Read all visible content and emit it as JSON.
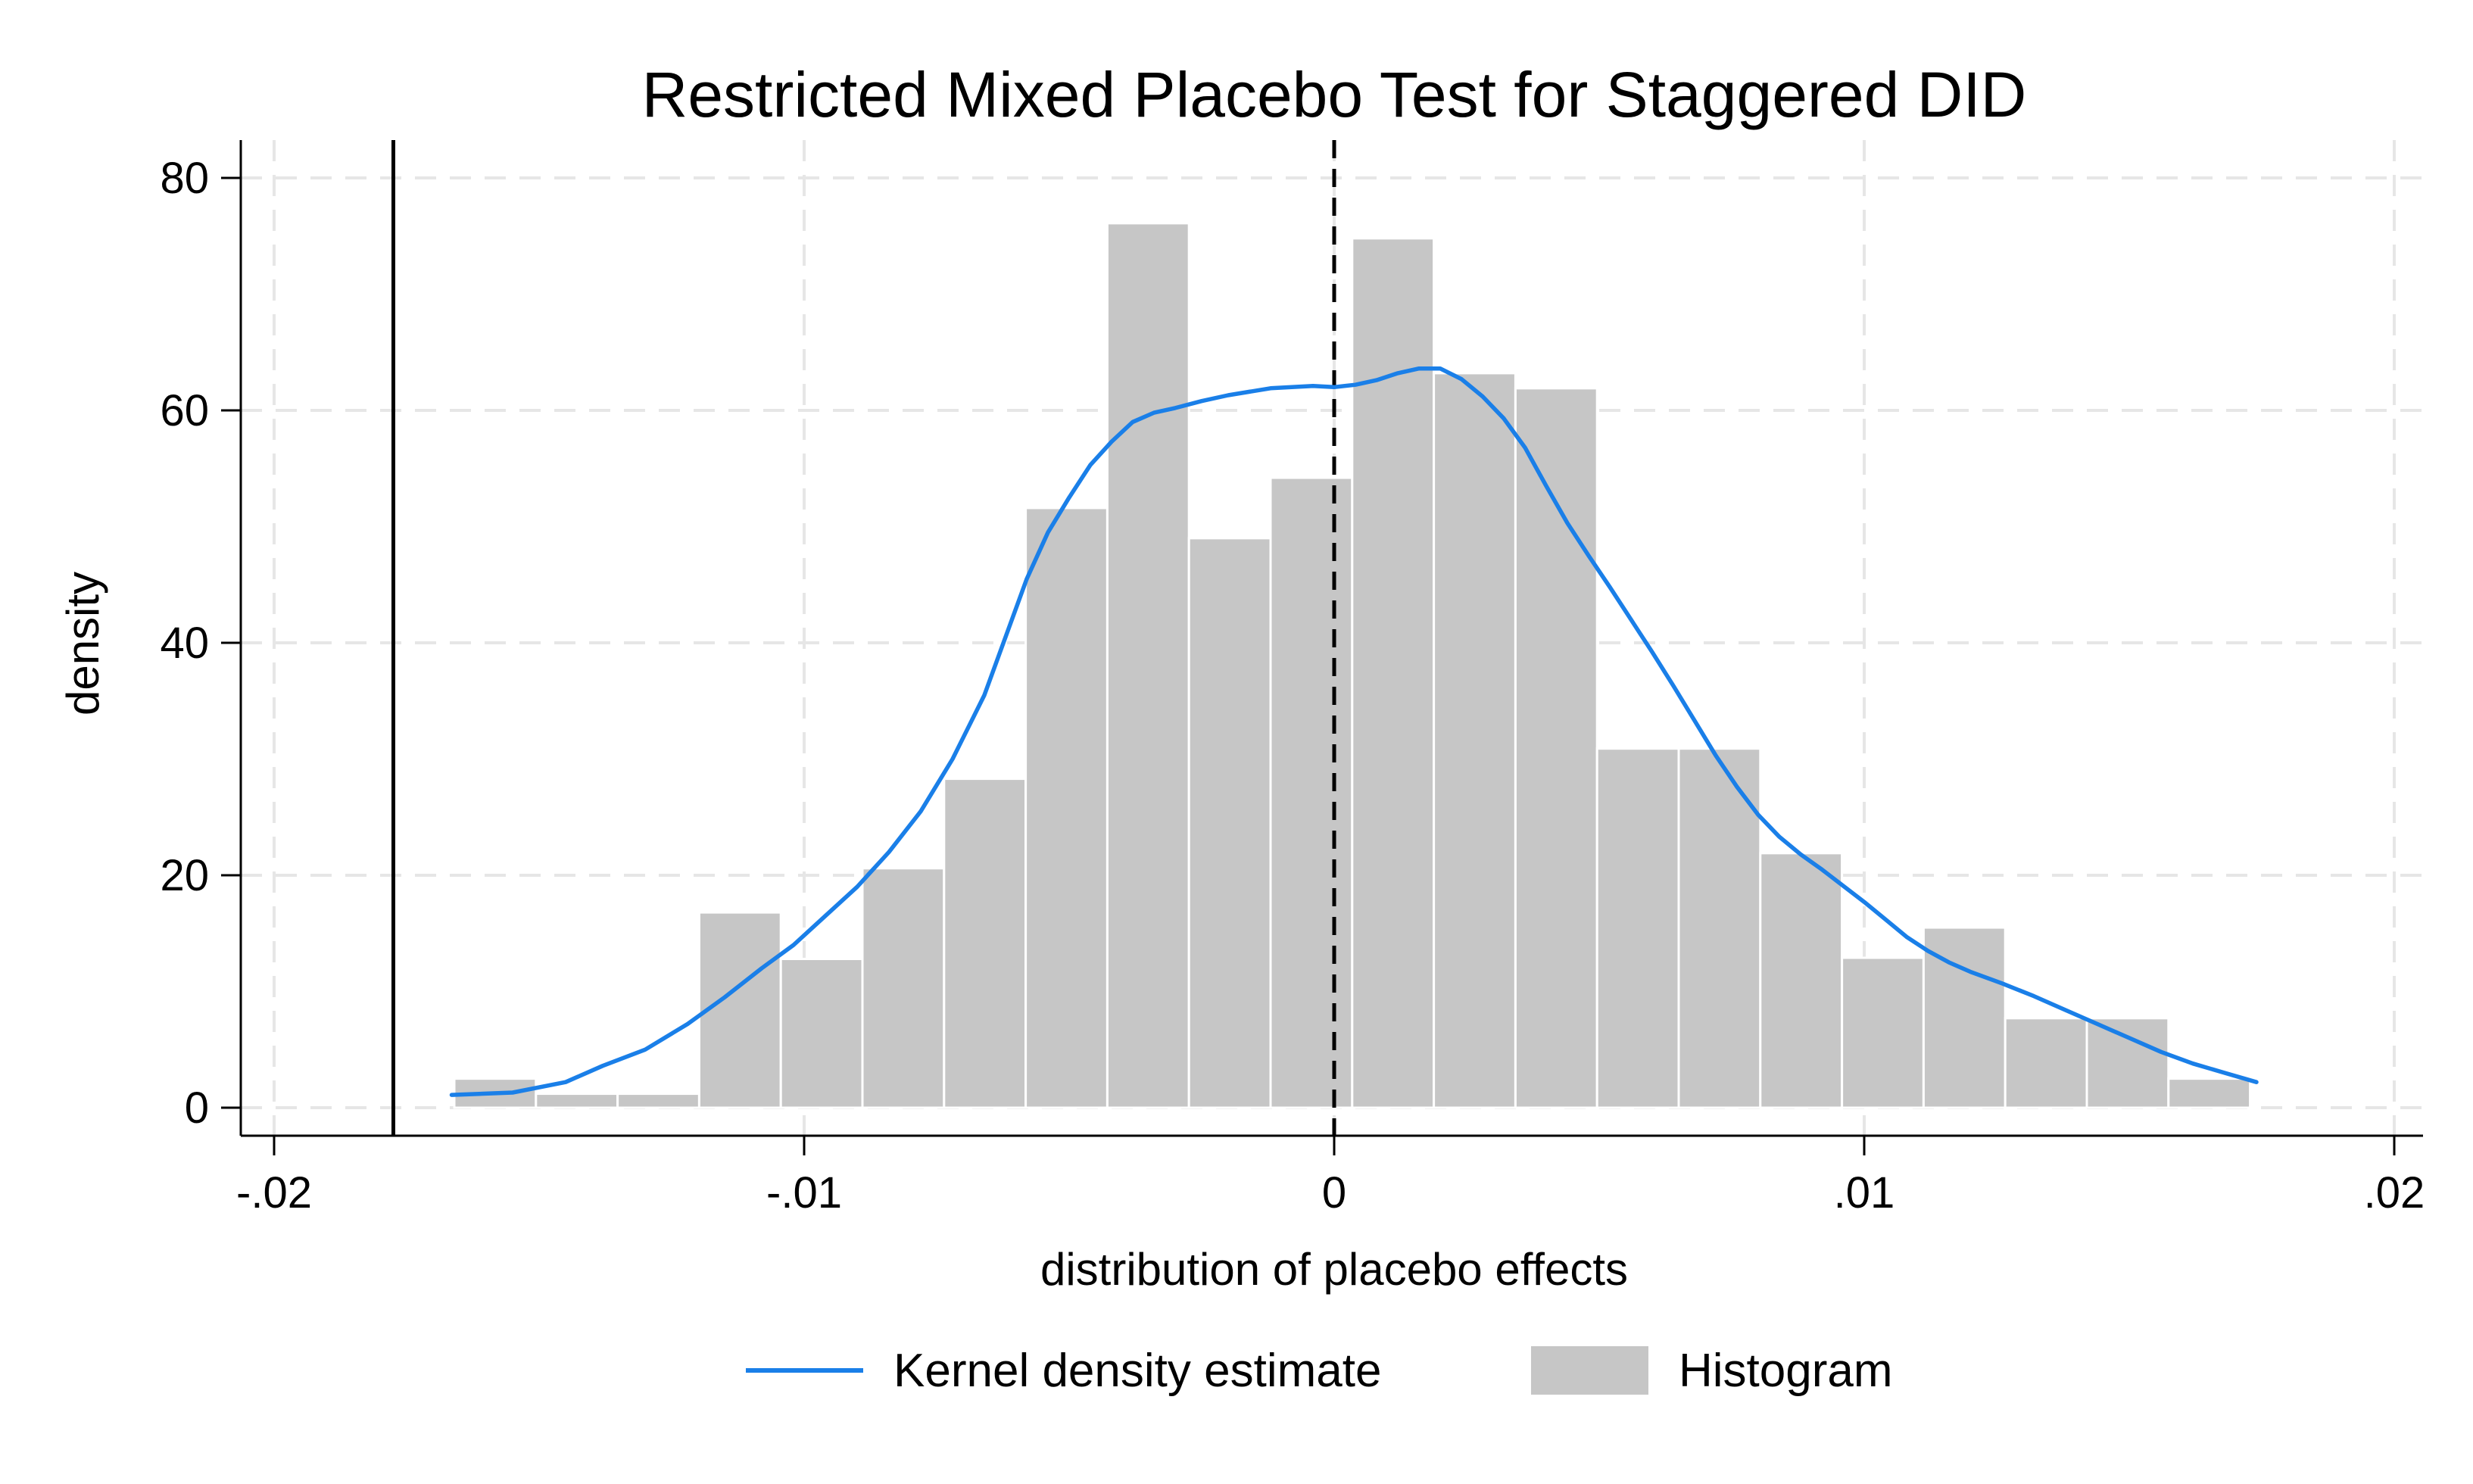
{
  "chart_data": {
    "type": "bar",
    "title": "Restricted Mixed Placebo Test for Staggered DID",
    "xlabel": "distribution of placebo effects",
    "ylabel": "density",
    "xlim": [
      -0.02,
      0.02
    ],
    "ylim": [
      0,
      80
    ],
    "x_ticks": [
      -0.02,
      -0.01,
      0,
      0.01,
      0.02
    ],
    "x_tick_labels": [
      "-.02",
      "-.01",
      "0",
      ".01",
      ".02"
    ],
    "y_ticks": [
      0,
      20,
      40,
      60,
      80
    ],
    "y_tick_labels": [
      "0",
      "20",
      "40",
      "60",
      "80"
    ],
    "grid": true,
    "legend_position": "bottom",
    "reference_lines": [
      {
        "x": -0.01775,
        "style": "solid",
        "color": "#000000"
      },
      {
        "x": 0,
        "style": "dashed",
        "color": "#000000"
      }
    ],
    "series": [
      {
        "name": "Histogram",
        "type": "bar",
        "color": "#c6c6c6",
        "bin_width": 0.00154,
        "bins": [
          {
            "x_start": -0.0166,
            "value": 2.5
          },
          {
            "x_start": -0.01506,
            "value": 1.2
          },
          {
            "x_start": -0.01352,
            "value": 1.2
          },
          {
            "x_start": -0.01198,
            "value": 16.8
          },
          {
            "x_start": -0.01044,
            "value": 12.8
          },
          {
            "x_start": -0.0089,
            "value": 20.6
          },
          {
            "x_start": -0.00736,
            "value": 28.3
          },
          {
            "x_start": -0.00582,
            "value": 51.6
          },
          {
            "x_start": -0.00428,
            "value": 76.1
          },
          {
            "x_start": -0.00274,
            "value": 49.0
          },
          {
            "x_start": -0.0012,
            "value": 54.2
          },
          {
            "x_start": 0.00034,
            "value": 74.8
          },
          {
            "x_start": 0.00188,
            "value": 63.2
          },
          {
            "x_start": 0.00342,
            "value": 61.9
          },
          {
            "x_start": 0.00496,
            "value": 30.9
          },
          {
            "x_start": 0.0065,
            "value": 30.9
          },
          {
            "x_start": 0.00804,
            "value": 21.9
          },
          {
            "x_start": 0.00958,
            "value": 12.9
          },
          {
            "x_start": 0.01112,
            "value": 15.5
          },
          {
            "x_start": 0.01266,
            "value": 7.7
          },
          {
            "x_start": 0.0142,
            "value": 7.7
          },
          {
            "x_start": 0.01574,
            "value": 2.5
          }
        ]
      },
      {
        "name": "Kernel density estimate",
        "type": "line",
        "color": "#1a7fe8",
        "points": [
          [
            -0.01665,
            1.1
          ],
          [
            -0.0155,
            1.3
          ],
          [
            -0.0145,
            2.2
          ],
          [
            -0.0138,
            3.6
          ],
          [
            -0.013,
            5.0
          ],
          [
            -0.0122,
            7.2
          ],
          [
            -0.0115,
            9.5
          ],
          [
            -0.0108,
            12.0
          ],
          [
            -0.0102,
            14.0
          ],
          [
            -0.0096,
            16.5
          ],
          [
            -0.009,
            19.0
          ],
          [
            -0.0084,
            22.0
          ],
          [
            -0.0078,
            25.5
          ],
          [
            -0.0072,
            30.0
          ],
          [
            -0.0066,
            35.5
          ],
          [
            -0.0062,
            40.5
          ],
          [
            -0.0058,
            45.5
          ],
          [
            -0.0054,
            49.5
          ],
          [
            -0.005,
            52.5
          ],
          [
            -0.0046,
            55.3
          ],
          [
            -0.0042,
            57.3
          ],
          [
            -0.0038,
            59.0
          ],
          [
            -0.0034,
            59.8
          ],
          [
            -0.003,
            60.2
          ],
          [
            -0.0025,
            60.8
          ],
          [
            -0.002,
            61.3
          ],
          [
            -0.0016,
            61.6
          ],
          [
            -0.0012,
            61.9
          ],
          [
            -0.0008,
            62.0
          ],
          [
            -0.0004,
            62.1
          ],
          [
            0.0,
            62.0
          ],
          [
            0.0004,
            62.2
          ],
          [
            0.0008,
            62.6
          ],
          [
            0.0012,
            63.2
          ],
          [
            0.0016,
            63.6
          ],
          [
            0.002,
            63.6
          ],
          [
            0.0024,
            62.7
          ],
          [
            0.0028,
            61.2
          ],
          [
            0.0032,
            59.3
          ],
          [
            0.0036,
            56.8
          ],
          [
            0.004,
            53.5
          ],
          [
            0.0044,
            50.3
          ],
          [
            0.0048,
            47.5
          ],
          [
            0.0052,
            44.8
          ],
          [
            0.0056,
            42.0
          ],
          [
            0.006,
            39.2
          ],
          [
            0.0064,
            36.3
          ],
          [
            0.0068,
            33.3
          ],
          [
            0.0072,
            30.3
          ],
          [
            0.0076,
            27.6
          ],
          [
            0.008,
            25.2
          ],
          [
            0.0084,
            23.3
          ],
          [
            0.0088,
            21.8
          ],
          [
            0.0092,
            20.5
          ],
          [
            0.0096,
            19.1
          ],
          [
            0.01,
            17.7
          ],
          [
            0.0104,
            16.2
          ],
          [
            0.0108,
            14.7
          ],
          [
            0.0112,
            13.5
          ],
          [
            0.0116,
            12.5
          ],
          [
            0.012,
            11.7
          ],
          [
            0.0126,
            10.7
          ],
          [
            0.0132,
            9.6
          ],
          [
            0.0138,
            8.4
          ],
          [
            0.0144,
            7.2
          ],
          [
            0.015,
            6.0
          ],
          [
            0.0156,
            4.8
          ],
          [
            0.0162,
            3.8
          ],
          [
            0.0168,
            3.0
          ],
          [
            0.0174,
            2.2
          ]
        ]
      }
    ]
  },
  "legend": {
    "items": [
      {
        "label": "Kernel density estimate",
        "color": "#1a7fe8",
        "kind": "line"
      },
      {
        "label": "Histogram",
        "color": "#c6c6c6",
        "kind": "box"
      }
    ]
  }
}
